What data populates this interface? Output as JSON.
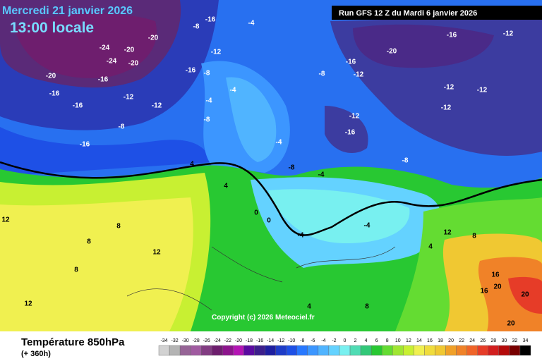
{
  "header": {
    "date": "Mercredi 21 janvier 2026",
    "time": "13:00 locale",
    "run": "Run GFS 12 Z du Mardi 6 janvier 2026"
  },
  "copyright": "Copyright (c) 2026 Meteociel.fr",
  "footer": {
    "title": "Température 850hPa",
    "subtitle": "(+ 360h)"
  },
  "legend": {
    "ticks": [
      -34,
      -32,
      -30,
      -28,
      -26,
      -24,
      -22,
      -20,
      -18,
      -16,
      -14,
      -12,
      -10,
      -8,
      -6,
      -4,
      -2,
      0,
      2,
      4,
      6,
      8,
      10,
      12,
      14,
      16,
      18,
      20,
      22,
      24,
      26,
      28,
      30,
      32,
      34
    ],
    "colors": [
      "#d2d2d2",
      "#b4b4b4",
      "#966496",
      "#a05aa0",
      "#823c82",
      "#6e1e6e",
      "#8c148c",
      "#b414b4",
      "#5a0aa0",
      "#3c1e8c",
      "#1e1ea0",
      "#1e3cc8",
      "#1e50e6",
      "#2878ff",
      "#3c96ff",
      "#50b4ff",
      "#64d2ff",
      "#78f0f0",
      "#50dcb4",
      "#32c878",
      "#28c832",
      "#64dc32",
      "#a0e632",
      "#c8f032",
      "#f0f050",
      "#f0dc3c",
      "#f0c832",
      "#f0a028",
      "#f08228",
      "#f06428",
      "#e63c28",
      "#d21e1e",
      "#b40a0a",
      "#780000",
      "#000000"
    ]
  },
  "map_labels": [
    "-24",
    "-24",
    "-20",
    "-20",
    "-20",
    "-20",
    "-16",
    "-16",
    "-16",
    "-16",
    "-12",
    "-12",
    "-8",
    "-16",
    "-8",
    "-8",
    "-4",
    "-4",
    "-12",
    "-4",
    "-8",
    "-16",
    "-20",
    "-16",
    "-12",
    "-16",
    "-12",
    "-12",
    "-12",
    "-12",
    "-12",
    "-16",
    "-8",
    "-8",
    "-8",
    "-4",
    "-4",
    "4",
    "4",
    "0",
    "0",
    "-4",
    "-4",
    "8",
    "8",
    "12",
    "8",
    "12",
    "12",
    "4",
    "8",
    "12",
    "16",
    "20",
    "20",
    "16",
    "20",
    "4",
    "8"
  ]
}
